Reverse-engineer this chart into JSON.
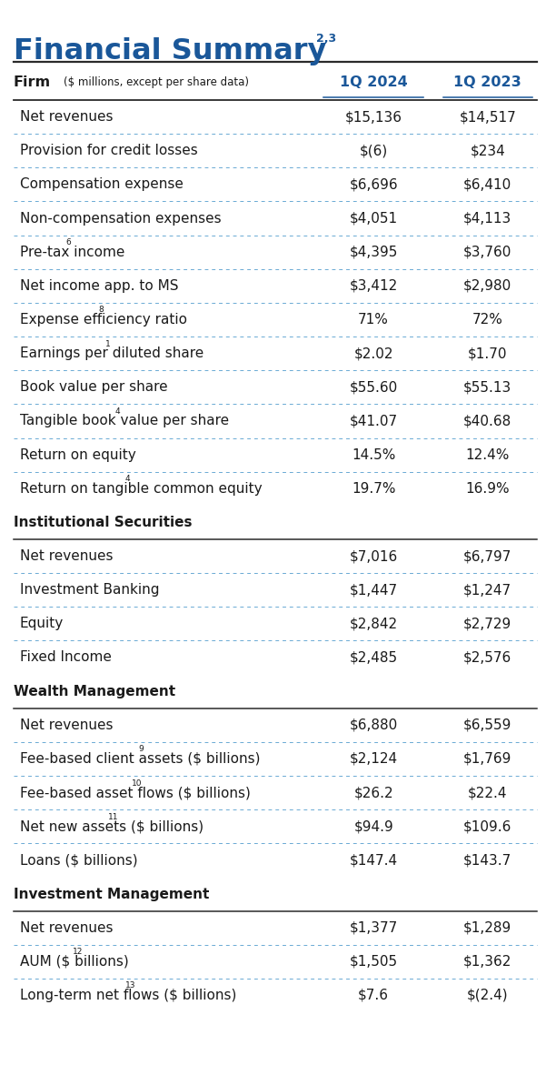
{
  "title": "Financial Summary",
  "title_superscript": "2,3",
  "background_color": "#FFFFFF",
  "header_label": "Firm",
  "header_sublabel": "($ millions, except per share data)",
  "col1_header": "1Q 2024",
  "col2_header": "1Q 2023",
  "rows": [
    {
      "label": "Net revenues",
      "sup": "",
      "col1": "$15,136",
      "col2": "$14,517",
      "section_header": false
    },
    {
      "label": "Provision for credit losses",
      "sup": "",
      "col1": "$(6)",
      "col2": "$234",
      "section_header": false
    },
    {
      "label": "Compensation expense",
      "sup": "",
      "col1": "$6,696",
      "col2": "$6,410",
      "section_header": false
    },
    {
      "label": "Non-compensation expenses",
      "sup": "",
      "col1": "$4,051",
      "col2": "$4,113",
      "section_header": false
    },
    {
      "label": "Pre-tax income",
      "sup": "6",
      "col1": "$4,395",
      "col2": "$3,760",
      "section_header": false
    },
    {
      "label": "Net income app. to MS",
      "sup": "",
      "col1": "$3,412",
      "col2": "$2,980",
      "section_header": false
    },
    {
      "label": "Expense efficiency ratio",
      "sup": "8",
      "col1": "71%",
      "col2": "72%",
      "section_header": false
    },
    {
      "label": "Earnings per diluted share",
      "sup": "1",
      "col1": "$2.02",
      "col2": "$1.70",
      "section_header": false
    },
    {
      "label": "Book value per share",
      "sup": "",
      "col1": "$55.60",
      "col2": "$55.13",
      "section_header": false
    },
    {
      "label": "Tangible book value per share",
      "sup": "4",
      "col1": "$41.07",
      "col2": "$40.68",
      "section_header": false
    },
    {
      "label": "Return on equity",
      "sup": "",
      "col1": "14.5%",
      "col2": "12.4%",
      "section_header": false
    },
    {
      "label": "Return on tangible common equity",
      "sup": "4",
      "col1": "19.7%",
      "col2": "16.9%",
      "section_header": false
    },
    {
      "label": "Institutional Securities",
      "sup": "",
      "col1": "",
      "col2": "",
      "section_header": true
    },
    {
      "label": "Net revenues",
      "sup": "",
      "col1": "$7,016",
      "col2": "$6,797",
      "section_header": false
    },
    {
      "label": "Investment Banking",
      "sup": "",
      "col1": "$1,447",
      "col2": "$1,247",
      "section_header": false
    },
    {
      "label": "Equity",
      "sup": "",
      "col1": "$2,842",
      "col2": "$2,729",
      "section_header": false
    },
    {
      "label": "Fixed Income",
      "sup": "",
      "col1": "$2,485",
      "col2": "$2,576",
      "section_header": false
    },
    {
      "label": "Wealth Management",
      "sup": "",
      "col1": "",
      "col2": "",
      "section_header": true
    },
    {
      "label": "Net revenues",
      "sup": "",
      "col1": "$6,880",
      "col2": "$6,559",
      "section_header": false
    },
    {
      "label": "Fee-based client assets ($ billions)",
      "sup": "9",
      "col1": "$2,124",
      "col2": "$1,769",
      "section_header": false
    },
    {
      "label": "Fee-based asset flows ($ billions)",
      "sup": "10",
      "col1": "$26.2",
      "col2": "$22.4",
      "section_header": false
    },
    {
      "label": "Net new assets ($ billions)",
      "sup": "11",
      "col1": "$94.9",
      "col2": "$109.6",
      "section_header": false
    },
    {
      "label": "Loans ($ billions)",
      "sup": "",
      "col1": "$147.4",
      "col2": "$143.7",
      "section_header": false
    },
    {
      "label": "Investment Management",
      "sup": "",
      "col1": "",
      "col2": "",
      "section_header": true
    },
    {
      "label": "Net revenues",
      "sup": "",
      "col1": "$1,377",
      "col2": "$1,289",
      "section_header": false
    },
    {
      "label": "AUM ($ billions)",
      "sup": "12",
      "col1": "$1,505",
      "col2": "$1,362",
      "section_header": false
    },
    {
      "label": "Long-term net flows ($ billions)",
      "sup": "13",
      "col1": "$7.6",
      "col2": "$(2.4)",
      "section_header": false
    }
  ],
  "blue_color": "#1a5799",
  "black_color": "#1A1A1A",
  "dotted_line_color": "#6aaad4",
  "solid_line_color": "#2a2a2a",
  "font_size_title": 23,
  "font_size_header_col": 11.5,
  "font_size_row": 11.0,
  "font_size_sublabel": 8.5
}
